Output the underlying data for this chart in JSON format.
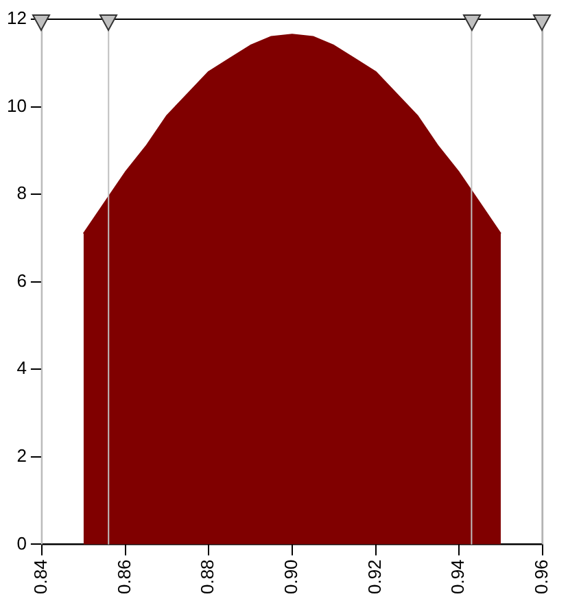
{
  "chart_data": {
    "type": "area",
    "color": "#800000",
    "marker": "none",
    "grid": false,
    "legend": false,
    "x": [
      0.85,
      0.855,
      0.86,
      0.865,
      0.87,
      0.875,
      0.88,
      0.885,
      0.89,
      0.895,
      0.9,
      0.905,
      0.91,
      0.915,
      0.92,
      0.925,
      0.93,
      0.935,
      0.94,
      0.945,
      0.95
    ],
    "values": [
      7.1,
      7.8,
      8.5,
      9.1,
      9.8,
      10.3,
      10.8,
      11.1,
      11.4,
      11.6,
      11.65,
      11.6,
      11.4,
      11.1,
      10.8,
      10.3,
      9.8,
      9.1,
      8.5,
      7.8,
      7.1
    ],
    "xlim": [
      0.84,
      0.96
    ],
    "xticks": [
      {
        "value": 0.84,
        "label": "0.84"
      },
      {
        "value": 0.86,
        "label": "0.86"
      },
      {
        "value": 0.88,
        "label": "0.88"
      },
      {
        "value": 0.9,
        "label": "0.90"
      },
      {
        "value": 0.92,
        "label": "0.92"
      },
      {
        "value": 0.94,
        "label": "0.94"
      },
      {
        "value": 0.96,
        "label": "0.96"
      }
    ],
    "ylim": [
      0,
      12
    ],
    "yticks": [
      0,
      2,
      4,
      6,
      8,
      10,
      12
    ],
    "ref_lines": [
      {
        "axis": "x",
        "value": 0.84,
        "color": "#c0c0c0"
      },
      {
        "axis": "x",
        "value": 0.856,
        "color": "#c0c0c0"
      },
      {
        "axis": "x",
        "value": 0.943,
        "color": "#c0c0c0"
      },
      {
        "axis": "x",
        "value": 0.96,
        "color": "#c0c0c0"
      }
    ]
  }
}
